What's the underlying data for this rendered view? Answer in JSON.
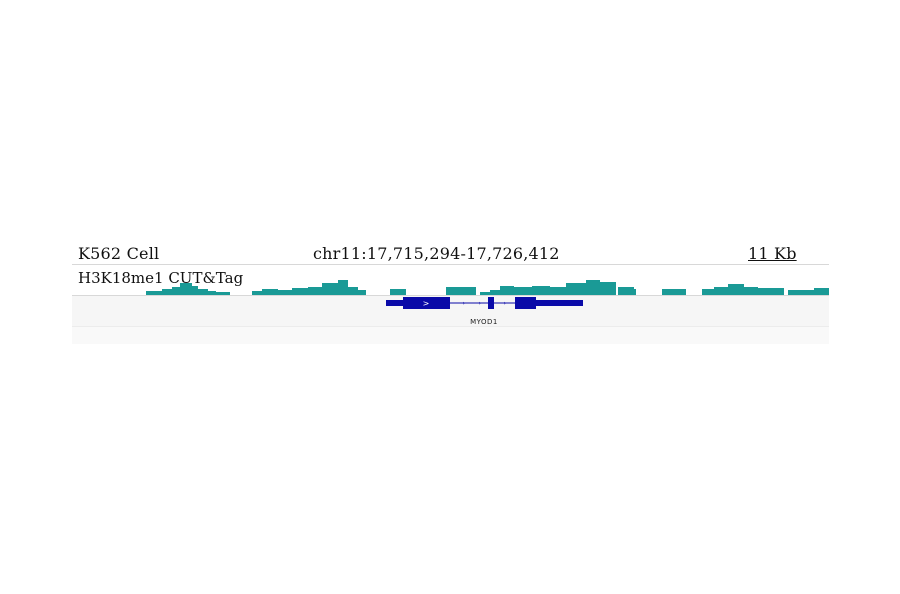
{
  "header": {
    "cell_line": "K562 Cell",
    "locus": "chr11:17,715,294-17,726,412",
    "scale": "11 Kb"
  },
  "track": {
    "label": "H3K18me1 CUT&Tag",
    "color": "#1a9a96"
  },
  "gene": {
    "name": "MYOD1",
    "color": "#0a0aa8",
    "strand_glyph": ">"
  }
}
